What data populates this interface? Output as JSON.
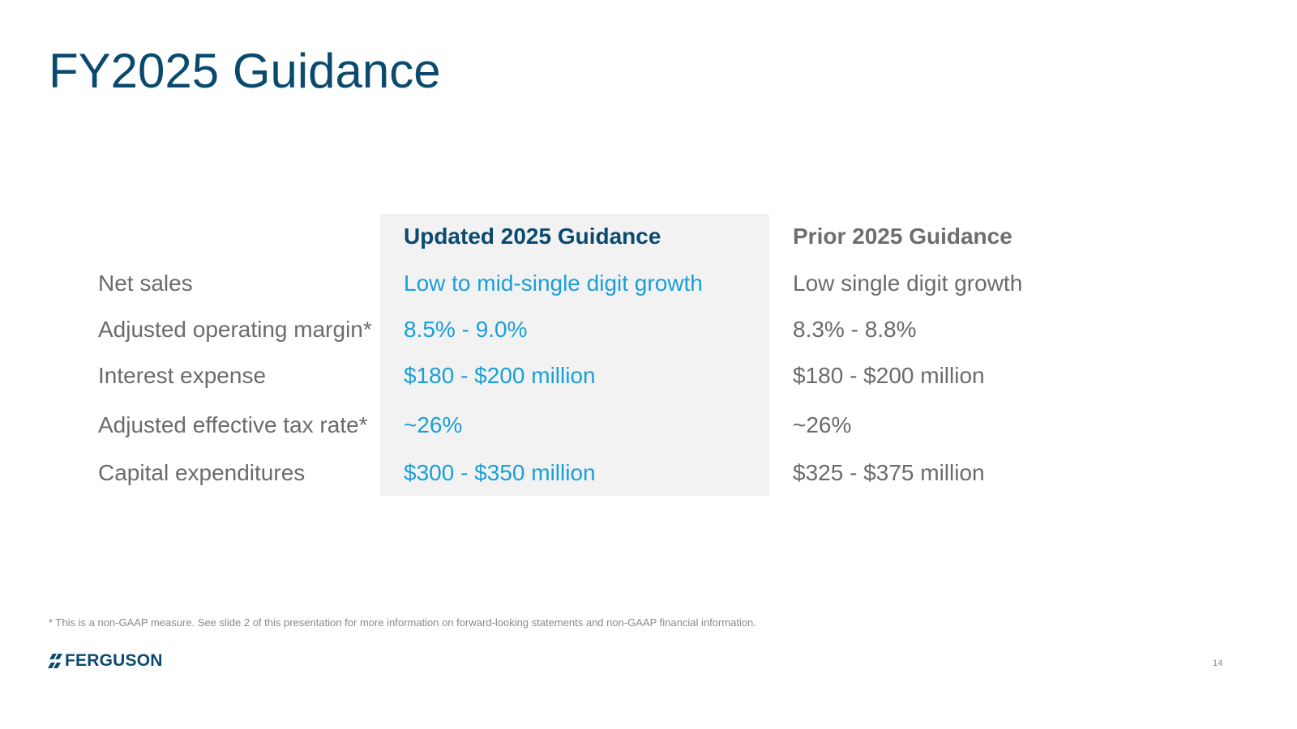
{
  "slide": {
    "title": "FY2025 Guidance",
    "footnote": "* This is a non-GAAP measure. See slide 2 of this presentation for more information on forward-looking statements and non-GAAP financial information.",
    "logo_text": "FERGUSON",
    "page_number": "14"
  },
  "colors": {
    "title": "#0b4a6f",
    "updated_values": "#1a9fd9",
    "prior_values": "#6b6b6b",
    "updated_panel": "#f2f2f2"
  },
  "table": {
    "headers": {
      "updated": "Updated 2025 Guidance",
      "prior": "Prior 2025 Guidance"
    },
    "rows": [
      {
        "label": "Net sales",
        "updated": "Low to mid-single digit growth",
        "prior": "Low single digit growth"
      },
      {
        "label": "Adjusted operating margin*",
        "updated": "8.5% - 9.0%",
        "prior": "8.3% - 8.8%"
      },
      {
        "label": "Interest expense",
        "updated": "$180 - $200 million",
        "prior": "$180 - $200 million"
      },
      {
        "label": "Adjusted effective tax rate*",
        "updated": "~26%",
        "prior": "~26%"
      },
      {
        "label": "Capital expenditures",
        "updated": "$300 - $350 million",
        "prior": "$325 - $375 million"
      }
    ]
  }
}
